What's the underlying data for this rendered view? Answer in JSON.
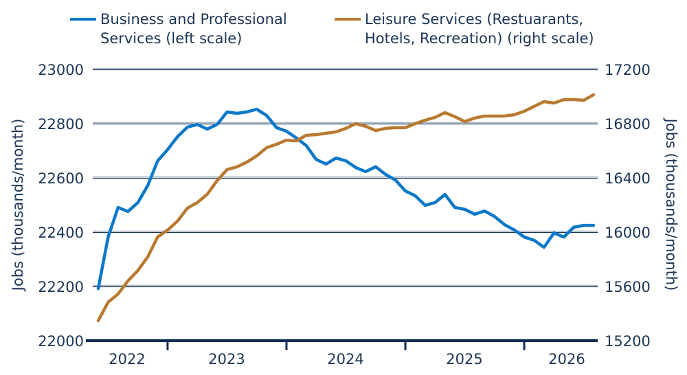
{
  "chart_data": {
    "type": "line",
    "xtick_labels": [
      "2022",
      "2023",
      "2024",
      "2025",
      "2026"
    ],
    "ylabel_left": "Jobs (thousands/month)",
    "ylabel_right": "Jobs (thousands/month)",
    "ylim_left": [
      22000,
      23000
    ],
    "ylim_right": [
      15200,
      17200
    ],
    "yticks_left": [
      22000,
      22200,
      22400,
      22600,
      22800,
      23000
    ],
    "yticks_right": [
      15200,
      15600,
      16000,
      16400,
      16800,
      17200
    ],
    "grid": true,
    "legend_position": "top",
    "series": [
      {
        "name": "Business and Professional Services (left scale)",
        "axis": "left",
        "color": "#0b78c8",
        "values": [
          22192,
          22382,
          22491,
          22476,
          22509,
          22572,
          22663,
          22704,
          22752,
          22787,
          22797,
          22780,
          22797,
          22843,
          22838,
          22843,
          22853,
          22830,
          22785,
          22772,
          22747,
          22719,
          22668,
          22651,
          22673,
          22663,
          22638,
          22623,
          22641,
          22613,
          22592,
          22552,
          22534,
          22499,
          22509,
          22539,
          22491,
          22484,
          22466,
          22478,
          22458,
          22428,
          22408,
          22382,
          22370,
          22344,
          22397,
          22382,
          22418,
          22425,
          22425
        ]
      },
      {
        "name": "Leisure Services (Restuarants, Hotels, Recreation) (right scale)",
        "axis": "right",
        "color": "#b87a30",
        "values": [
          15347,
          15484,
          15544,
          15641,
          15717,
          15818,
          15965,
          16015,
          16081,
          16177,
          16218,
          16279,
          16380,
          16461,
          16481,
          16516,
          16562,
          16623,
          16648,
          16678,
          16673,
          16714,
          16719,
          16729,
          16739,
          16765,
          16800,
          16780,
          16749,
          16765,
          16770,
          16770,
          16800,
          16825,
          16846,
          16881,
          16851,
          16815,
          16841,
          16856,
          16856,
          16856,
          16866,
          16891,
          16927,
          16962,
          16952,
          16977,
          16977,
          16972,
          17013
        ]
      }
    ]
  },
  "legend": {
    "blue_line1": "Business and Professional",
    "blue_line2": "Services (left scale)",
    "orange_line1": "Leisure Services (Restuarants,",
    "orange_line2": "Hotels, Recreation) (right scale)"
  }
}
